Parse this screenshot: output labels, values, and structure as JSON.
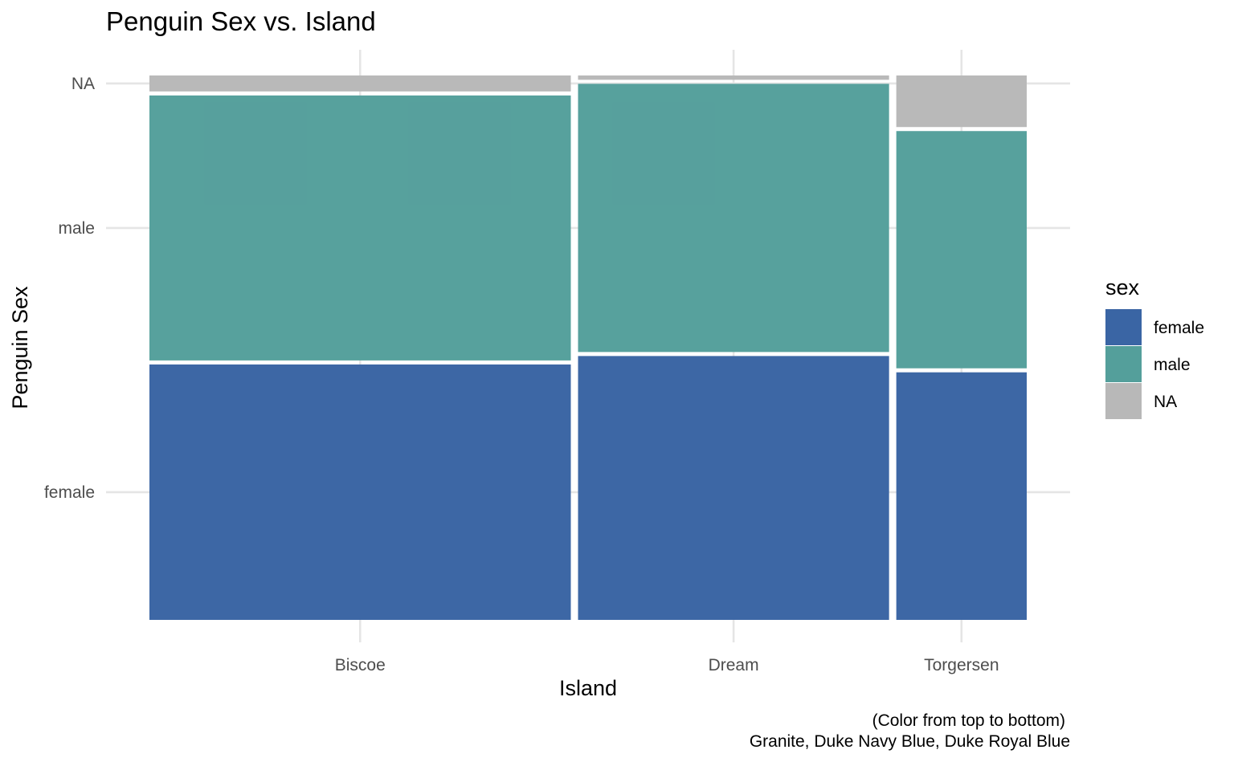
{
  "chart_data": {
    "type": "mosaic",
    "title": "Penguin Sex vs. Island",
    "xlabel": "Island",
    "ylabel": "Penguin Sex",
    "categories": [
      "Biscoe",
      "Dream",
      "Torgersen"
    ],
    "counts": [
      168,
      124,
      52
    ],
    "levels": [
      "female",
      "male",
      "NA"
    ],
    "y_ticks": [
      "female",
      "male",
      "NA"
    ],
    "series": [
      {
        "name": "female",
        "values": [
          80,
          61,
          24
        ],
        "color": "#3A65A4"
      },
      {
        "name": "male",
        "values": [
          83,
          62,
          23
        ],
        "color": "#549F9B"
      },
      {
        "name": "NA",
        "values": [
          5,
          1,
          5
        ],
        "color": "#B8B8B8"
      }
    ],
    "legend": {
      "title": "sex",
      "position": "right"
    },
    "grid": true,
    "caption": [
      "(Color from top to bottom)",
      "Granite, Duke Navy Blue, Duke Royal Blue"
    ]
  }
}
